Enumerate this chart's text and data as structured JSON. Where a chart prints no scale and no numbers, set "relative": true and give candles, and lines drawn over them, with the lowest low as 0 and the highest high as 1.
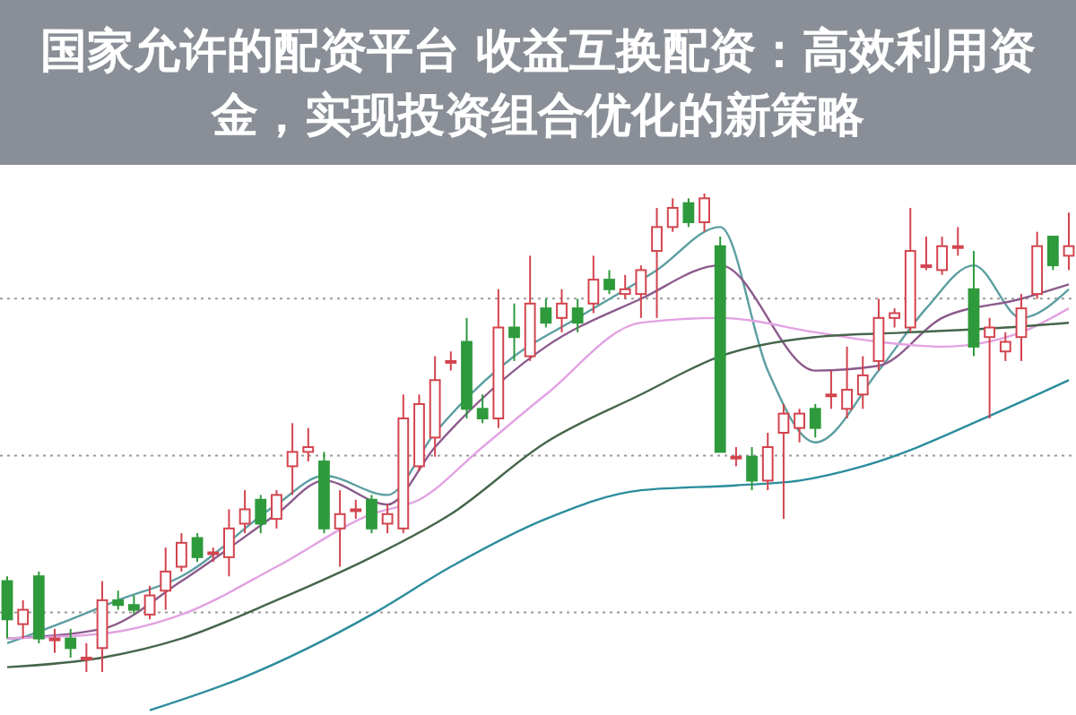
{
  "chart_data": {
    "type": "candlestick",
    "title": "国家允许的配资平台 收益互换配资：高效利用资金，实现投资组合优化的新策略",
    "relative": true,
    "grid": "y",
    "categories": [
      null,
      null,
      null,
      null,
      null,
      null,
      null,
      null,
      null,
      null,
      null,
      null,
      null,
      null,
      null,
      null,
      null,
      null,
      null,
      null,
      null,
      null,
      null,
      null,
      null,
      null,
      null,
      null,
      null,
      null,
      null,
      null,
      null,
      null,
      null,
      null,
      null,
      null,
      null,
      null,
      null,
      null,
      null,
      null,
      null,
      null,
      null,
      null,
      null,
      null,
      null,
      null,
      null,
      null,
      null,
      null,
      null,
      null,
      null,
      null,
      null,
      null,
      null,
      null,
      null,
      null,
      null,
      null
    ],
    "ohlc": [
      [
        0.19,
        0.2,
        0.07,
        0.11
      ],
      [
        0.1,
        0.15,
        0.07,
        0.13
      ],
      [
        0.2,
        0.21,
        0.06,
        0.07
      ],
      [
        0.07,
        0.09,
        0.04,
        0.07
      ],
      [
        0.07,
        0.09,
        0.03,
        0.05
      ],
      [
        0.03,
        0.06,
        0,
        0.03
      ],
      [
        0.05,
        0.19,
        0,
        0.15
      ],
      [
        0.15,
        0.17,
        0.13,
        0.14
      ],
      [
        0.14,
        0.16,
        0.12,
        0.13
      ],
      [
        0.12,
        0.18,
        0.11,
        0.16
      ],
      [
        0.17,
        0.26,
        0.13,
        0.21
      ],
      [
        0.22,
        0.29,
        0.21,
        0.27
      ],
      [
        0.28,
        0.29,
        0.23,
        0.24
      ],
      [
        0.25,
        0.26,
        0.23,
        0.25
      ],
      [
        0.24,
        0.34,
        0.2,
        0.3
      ],
      [
        0.31,
        0.38,
        0.29,
        0.34
      ],
      [
        0.36,
        0.37,
        0.29,
        0.31
      ],
      [
        0.32,
        0.38,
        0.3,
        0.37
      ],
      [
        0.43,
        0.52,
        0.37,
        0.46
      ],
      [
        0.46,
        0.51,
        0.44,
        0.47
      ],
      [
        0.44,
        0.46,
        0.29,
        0.3
      ],
      [
        0.3,
        0.38,
        0.22,
        0.33
      ],
      [
        0.34,
        0.36,
        0.32,
        0.34
      ],
      [
        0.36,
        0.37,
        0.29,
        0.3
      ],
      [
        0.31,
        0.35,
        0.29,
        0.33
      ],
      [
        0.3,
        0.58,
        0.29,
        0.53
      ],
      [
        0.43,
        0.58,
        0.42,
        0.56
      ],
      [
        0.49,
        0.66,
        0.45,
        0.61
      ],
      [
        0.65,
        0.67,
        0.63,
        0.65
      ],
      [
        0.69,
        0.74,
        0.53,
        0.55
      ],
      [
        0.55,
        0.58,
        0.52,
        0.53
      ],
      [
        0.53,
        0.8,
        0.51,
        0.72
      ],
      [
        0.72,
        0.77,
        0.65,
        0.7
      ],
      [
        0.66,
        0.87,
        0.65,
        0.77
      ],
      [
        0.76,
        0.78,
        0.72,
        0.73
      ],
      [
        0.74,
        0.8,
        0.71,
        0.77
      ],
      [
        0.76,
        0.78,
        0.71,
        0.73
      ],
      [
        0.77,
        0.87,
        0.75,
        0.82
      ],
      [
        0.82,
        0.84,
        0.79,
        0.8
      ],
      [
        0.79,
        0.83,
        0.78,
        0.8
      ],
      [
        0.79,
        0.85,
        0.74,
        0.84
      ],
      [
        0.88,
        0.97,
        0.74,
        0.93
      ],
      [
        0.93,
        0.99,
        0.92,
        0.97
      ],
      [
        0.98,
        0.99,
        0.93,
        0.94
      ],
      [
        0.94,
        1,
        0.92,
        0.99
      ],
      [
        0.89,
        0.91,
        0.46,
        0.46
      ],
      [
        0.45,
        0.47,
        0.43,
        0.45
      ],
      [
        0.45,
        0.47,
        0.38,
        0.4
      ],
      [
        0.4,
        0.5,
        0.38,
        0.47
      ],
      [
        0.5,
        0.56,
        0.32,
        0.54
      ],
      [
        0.51,
        0.55,
        0.48,
        0.54
      ],
      [
        0.55,
        0.56,
        0.49,
        0.51
      ],
      [
        0.58,
        0.63,
        0.55,
        0.58
      ],
      [
        0.55,
        0.68,
        0.53,
        0.59
      ],
      [
        0.58,
        0.66,
        0.55,
        0.62
      ],
      [
        0.65,
        0.78,
        0.63,
        0.74
      ],
      [
        0.74,
        0.76,
        0.72,
        0.75
      ],
      [
        0.72,
        0.97,
        0.71,
        0.88
      ],
      [
        0.85,
        0.91,
        0.84,
        0.85
      ],
      [
        0.84,
        0.91,
        0.83,
        0.89
      ],
      [
        0.89,
        0.93,
        0.87,
        0.89
      ],
      [
        0.8,
        0.88,
        0.66,
        0.68
      ],
      [
        0.7,
        0.74,
        0.53,
        0.72
      ],
      [
        0.67,
        0.71,
        0.65,
        0.69
      ],
      [
        0.7,
        0.79,
        0.65,
        0.76
      ],
      [
        0.79,
        0.92,
        0.78,
        0.89
      ],
      [
        0.91,
        0.91,
        0.84,
        0.85
      ],
      [
        0.87,
        0.96,
        0.84,
        0.89
      ]
    ],
    "series": [
      {
        "type": "line",
        "color": "#5c9ea0",
        "values": [
          0.06,
          null,
          null,
          null,
          0.11,
          null,
          null,
          0.15,
          null,
          null,
          null,
          0.2,
          null,
          null,
          null,
          null,
          null,
          0.35,
          null,
          null,
          0.41,
          null,
          null,
          null,
          0.37,
          null,
          null,
          0.5,
          null,
          null,
          null,
          null,
          0.66,
          null,
          null,
          null,
          0.74,
          null,
          null,
          null,
          null,
          0.84,
          null,
          null,
          null,
          0.93,
          null,
          null,
          0.63,
          null,
          null,
          0.48,
          null,
          null,
          null,
          0.63,
          null,
          null,
          0.76,
          null,
          null,
          0.85,
          null,
          null,
          0.74,
          null,
          null,
          0.8
        ]
      },
      {
        "type": "line",
        "color": "#8c5a8c",
        "values": [
          0.07,
          null,
          null,
          null,
          null,
          null,
          0.09,
          null,
          null,
          null,
          null,
          0.19,
          null,
          null,
          null,
          null,
          null,
          0.33,
          null,
          null,
          0.4,
          null,
          null,
          null,
          0.35,
          null,
          null,
          0.47,
          null,
          null,
          null,
          null,
          null,
          null,
          0.68,
          null,
          null,
          null,
          null,
          null,
          0.78,
          null,
          null,
          null,
          null,
          0.85,
          null,
          null,
          null,
          null,
          null,
          0.63,
          null,
          null,
          null,
          0.64,
          null,
          null,
          null,
          0.74,
          null,
          null,
          null,
          null,
          0.78,
          null,
          null,
          0.81
        ]
      },
      {
        "type": "line",
        "color": "#e2a2e2",
        "values": [
          0.07,
          null,
          null,
          null,
          null,
          null,
          0.08,
          null,
          null,
          null,
          null,
          0.12,
          null,
          null,
          null,
          null,
          null,
          0.22,
          null,
          null,
          null,
          null,
          null,
          0.33,
          null,
          null,
          0.36,
          null,
          null,
          null,
          0.47,
          null,
          null,
          null,
          0.58,
          null,
          null,
          null,
          null,
          null,
          0.73,
          null,
          null,
          null,
          null,
          0.74,
          null,
          null,
          null,
          null,
          null,
          0.71,
          null,
          null,
          null,
          0.69,
          null,
          null,
          null,
          0.68,
          null,
          null,
          null,
          null,
          0.71,
          null,
          null,
          0.76
        ]
      },
      {
        "type": "line",
        "color": "#46664a",
        "values": [
          0.01,
          null,
          null,
          null,
          null,
          null,
          0.03,
          null,
          null,
          null,
          null,
          0.07,
          null,
          null,
          null,
          null,
          null,
          0.15,
          null,
          null,
          null,
          null,
          null,
          0.24,
          null,
          null,
          null,
          null,
          0.33,
          null,
          null,
          null,
          null,
          null,
          0.48,
          null,
          null,
          null,
          null,
          null,
          0.58,
          null,
          null,
          null,
          null,
          0.66,
          null,
          null,
          null,
          null,
          null,
          0.7,
          null,
          null,
          null,
          null,
          null,
          0.71,
          null,
          null,
          null,
          null,
          null,
          0.72,
          null,
          null,
          null,
          0.73
        ]
      },
      {
        "type": "line",
        "color": "#2a8c9c",
        "values": [
          null,
          null,
          null,
          null,
          null,
          null,
          null,
          null,
          null,
          -0.08,
          null,
          null,
          null,
          null,
          null,
          -0.01,
          null,
          null,
          null,
          null,
          null,
          null,
          null,
          0.12,
          null,
          null,
          null,
          null,
          0.22,
          null,
          null,
          null,
          null,
          null,
          0.32,
          null,
          null,
          null,
          null,
          null,
          0.38,
          null,
          null,
          null,
          null,
          null,
          0.39,
          null,
          null,
          null,
          0.4,
          null,
          null,
          null,
          0.43,
          null,
          null,
          null,
          null,
          null,
          null,
          null,
          null,
          0.55,
          null,
          null,
          null,
          0.61
        ]
      }
    ]
  }
}
